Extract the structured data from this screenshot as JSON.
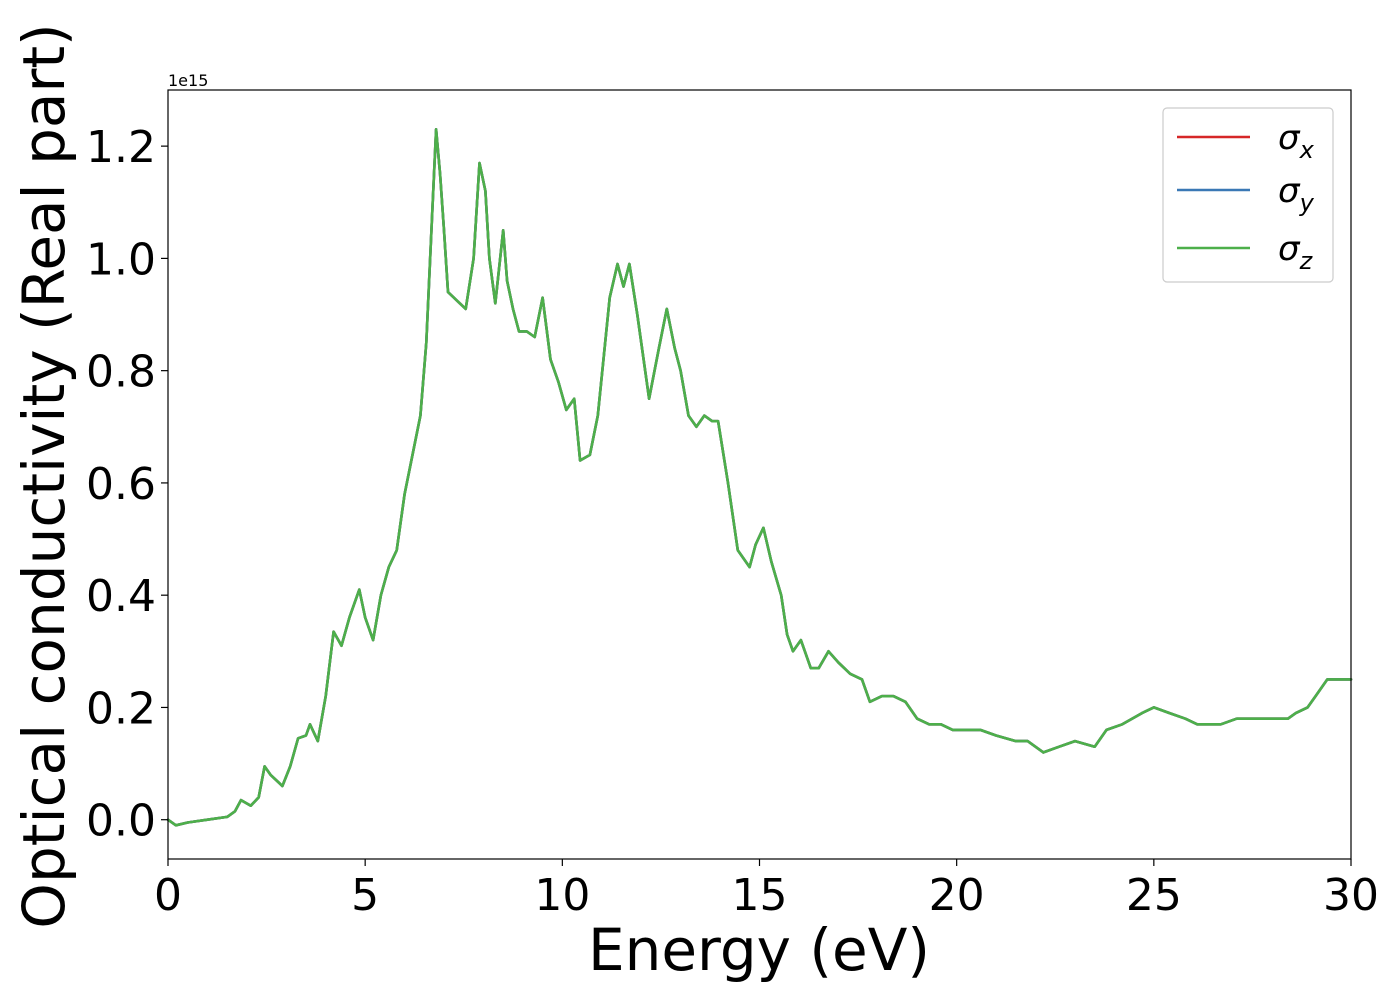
{
  "chart_data": {
    "type": "line",
    "title": "",
    "xlabel": "Energy (eV)",
    "ylabel": "Optical conductivity (Real part)",
    "y_multiplier": "1e15",
    "xlim": [
      0,
      30
    ],
    "ylim": [
      -0.07,
      1.3
    ],
    "xticks": [
      0,
      5,
      10,
      15,
      20,
      25,
      30
    ],
    "xtick_labels": [
      "0",
      "5",
      "10",
      "15",
      "20",
      "25",
      "30"
    ],
    "yticks": [
      0.0,
      0.2,
      0.4,
      0.6,
      0.8,
      1.0,
      1.2
    ],
    "ytick_labels": [
      "0.0",
      "0.2",
      "0.4",
      "0.6",
      "0.8",
      "1.0",
      "1.2"
    ],
    "grid": false,
    "legend_position": "top-right",
    "series": [
      {
        "name": "σx",
        "base": "σ",
        "sub": "x",
        "color": "#d62728",
        "shares_data_with": "σz"
      },
      {
        "name": "σy",
        "base": "σ",
        "sub": "y",
        "color": "#3a78b5",
        "shares_data_with": "σz"
      },
      {
        "name": "σz",
        "base": "σ",
        "sub": "z",
        "color": "#4daf4a",
        "x": [
          0,
          0.2,
          0.5,
          1.0,
          1.5,
          1.7,
          1.85,
          2.1,
          2.3,
          2.45,
          2.6,
          2.9,
          3.1,
          3.3,
          3.5,
          3.6,
          3.8,
          4.0,
          4.2,
          4.4,
          4.6,
          4.85,
          5.0,
          5.2,
          5.4,
          5.6,
          5.8,
          6.0,
          6.2,
          6.4,
          6.55,
          6.7,
          6.8,
          6.9,
          7.0,
          7.1,
          7.25,
          7.4,
          7.55,
          7.75,
          7.9,
          8.05,
          8.15,
          8.3,
          8.5,
          8.6,
          8.75,
          8.9,
          9.1,
          9.3,
          9.5,
          9.7,
          9.9,
          10.1,
          10.3,
          10.45,
          10.7,
          10.9,
          11.2,
          11.4,
          11.55,
          11.7,
          11.9,
          12.2,
          12.45,
          12.65,
          12.85,
          13.0,
          13.2,
          13.4,
          13.6,
          13.8,
          13.95,
          14.2,
          14.45,
          14.75,
          14.9,
          15.1,
          15.3,
          15.55,
          15.7,
          15.85,
          16.05,
          16.3,
          16.5,
          16.75,
          17.0,
          17.3,
          17.6,
          17.8,
          18.1,
          18.4,
          18.7,
          19.0,
          19.3,
          19.6,
          19.9,
          20.3,
          20.6,
          21.0,
          21.5,
          21.8,
          22.2,
          22.6,
          23.0,
          23.5,
          23.8,
          24.2,
          24.7,
          25.0,
          25.4,
          25.8,
          26.1,
          26.4,
          26.7,
          27.1,
          27.4,
          27.8,
          28.1,
          28.4,
          28.6,
          28.9,
          29.1,
          29.4,
          29.7,
          30.0
        ],
        "values": [
          0.0,
          -0.01,
          -0.005,
          0.0,
          0.005,
          0.015,
          0.035,
          0.025,
          0.04,
          0.095,
          0.08,
          0.06,
          0.095,
          0.145,
          0.15,
          0.17,
          0.14,
          0.22,
          0.335,
          0.31,
          0.36,
          0.41,
          0.36,
          0.32,
          0.4,
          0.45,
          0.48,
          0.58,
          0.65,
          0.72,
          0.85,
          1.08,
          1.23,
          1.15,
          1.05,
          0.94,
          0.93,
          0.92,
          0.91,
          1.0,
          1.17,
          1.12,
          1.0,
          0.92,
          1.05,
          0.96,
          0.91,
          0.87,
          0.87,
          0.86,
          0.93,
          0.82,
          0.78,
          0.73,
          0.75,
          0.64,
          0.65,
          0.72,
          0.93,
          0.99,
          0.95,
          0.99,
          0.9,
          0.75,
          0.84,
          0.91,
          0.84,
          0.8,
          0.72,
          0.7,
          0.72,
          0.71,
          0.71,
          0.6,
          0.48,
          0.45,
          0.49,
          0.52,
          0.46,
          0.4,
          0.33,
          0.3,
          0.32,
          0.27,
          0.27,
          0.3,
          0.28,
          0.26,
          0.25,
          0.21,
          0.22,
          0.22,
          0.21,
          0.18,
          0.17,
          0.17,
          0.16,
          0.16,
          0.16,
          0.15,
          0.14,
          0.14,
          0.12,
          0.13,
          0.14,
          0.13,
          0.16,
          0.17,
          0.19,
          0.2,
          0.19,
          0.18,
          0.17,
          0.17,
          0.17,
          0.18,
          0.18,
          0.18,
          0.18,
          0.18,
          0.19,
          0.2,
          0.22,
          0.25,
          0.25,
          0.25
        ]
      }
    ]
  }
}
